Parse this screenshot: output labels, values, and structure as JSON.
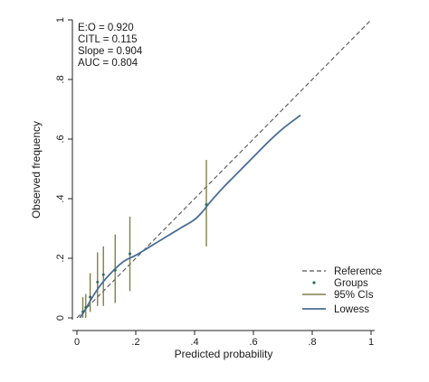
{
  "chart_data": {
    "type": "scatter",
    "xlabel": "Predicted probability",
    "ylabel": "Observed frequency",
    "xlim": [
      0,
      1
    ],
    "ylim": [
      0,
      1
    ],
    "x_ticks": [
      0,
      0.2,
      0.4,
      0.6,
      0.8,
      1
    ],
    "x_tick_labels": [
      "0",
      ".2",
      ".4",
      ".6",
      ".8",
      "1"
    ],
    "y_ticks": [
      0,
      0.2,
      0.4,
      0.6,
      0.8,
      1
    ],
    "y_tick_labels": [
      "0",
      ".2",
      ".4",
      ".6",
      ".8",
      "1"
    ],
    "grid": false,
    "legend_position": "bottom-right",
    "annotations": [
      "E:O = 0.920",
      "CITL = 0.115",
      "Slope = 0.904",
      "AUC = 0.804"
    ],
    "legend": [
      {
        "label": "Reference",
        "kind": "dashed-line"
      },
      {
        "label": "Groups",
        "kind": "dot"
      },
      {
        "label": "95% CIs",
        "kind": "olive-line"
      },
      {
        "label": "Lowess",
        "kind": "blue-line"
      }
    ],
    "series": [
      {
        "name": "Reference",
        "kind": "reference",
        "x": [
          0,
          1
        ],
        "y": [
          0,
          1
        ]
      },
      {
        "name": "Groups",
        "kind": "groups",
        "x": [
          0.02,
          0.03,
          0.045,
          0.07,
          0.09,
          0.13,
          0.18,
          0.44
        ],
        "y": [
          0.02,
          0.035,
          0.07,
          0.12,
          0.145,
          0.16,
          0.215,
          0.38
        ],
        "ci_low": [
          0.0,
          0.0,
          0.02,
          0.04,
          0.04,
          0.05,
          0.09,
          0.24
        ],
        "ci_high": [
          0.07,
          0.08,
          0.15,
          0.22,
          0.24,
          0.28,
          0.34,
          0.53
        ]
      },
      {
        "name": "Lowess",
        "kind": "lowess",
        "x": [
          0.01,
          0.03,
          0.05,
          0.08,
          0.12,
          0.16,
          0.2,
          0.25,
          0.3,
          0.35,
          0.4,
          0.43,
          0.45,
          0.5,
          0.55,
          0.6,
          0.65,
          0.7,
          0.76
        ],
        "y": [
          0.0,
          0.03,
          0.065,
          0.11,
          0.155,
          0.19,
          0.21,
          0.24,
          0.27,
          0.3,
          0.33,
          0.36,
          0.385,
          0.44,
          0.49,
          0.54,
          0.59,
          0.635,
          0.68
        ]
      }
    ],
    "colors": {
      "reference": "#555555",
      "groups": "#2f6b5e",
      "ci": "#7f7f4a",
      "lowess": "#4a6e96",
      "axis": "#222222"
    }
  }
}
